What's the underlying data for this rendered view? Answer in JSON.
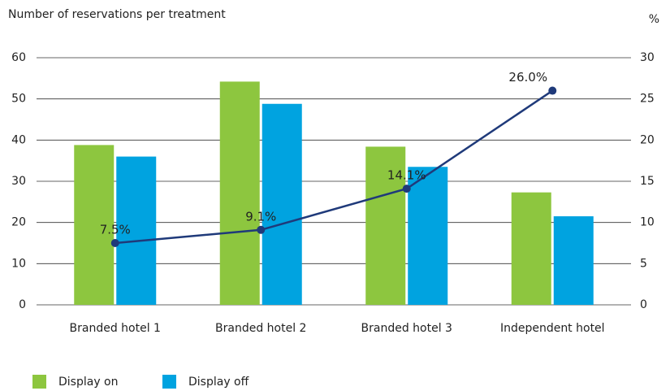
{
  "chart_data": {
    "type": "bar",
    "title": "Number of reservations per treatment",
    "y2_label": "%",
    "categories": [
      "Branded hotel 1",
      "Branded hotel 2",
      "Branded hotel 3",
      "Independent hotel"
    ],
    "series": [
      {
        "name": "Display on",
        "color": "#8dc63f",
        "values": [
          38.8,
          54.2,
          38.4,
          27.3
        ]
      },
      {
        "name": "Display off",
        "color": "#00a3e0",
        "values": [
          36,
          48.8,
          33.5,
          21.5
        ]
      },
      {
        "type": "line",
        "axis": "y2",
        "color": "#1f3a7a",
        "values": [
          7.5,
          9.1,
          14.1,
          26.0
        ],
        "value_labels": [
          "7.5%",
          "9.1%",
          "14.1%",
          "26.0%"
        ]
      }
    ],
    "ylim": [
      0,
      60
    ],
    "yticks": [
      0,
      10,
      20,
      30,
      40,
      50,
      60
    ],
    "y2lim": [
      0,
      30
    ],
    "y2ticks": [
      0,
      5,
      10,
      15,
      20,
      25,
      30
    ],
    "grid": true,
    "legend": "bottom left"
  }
}
